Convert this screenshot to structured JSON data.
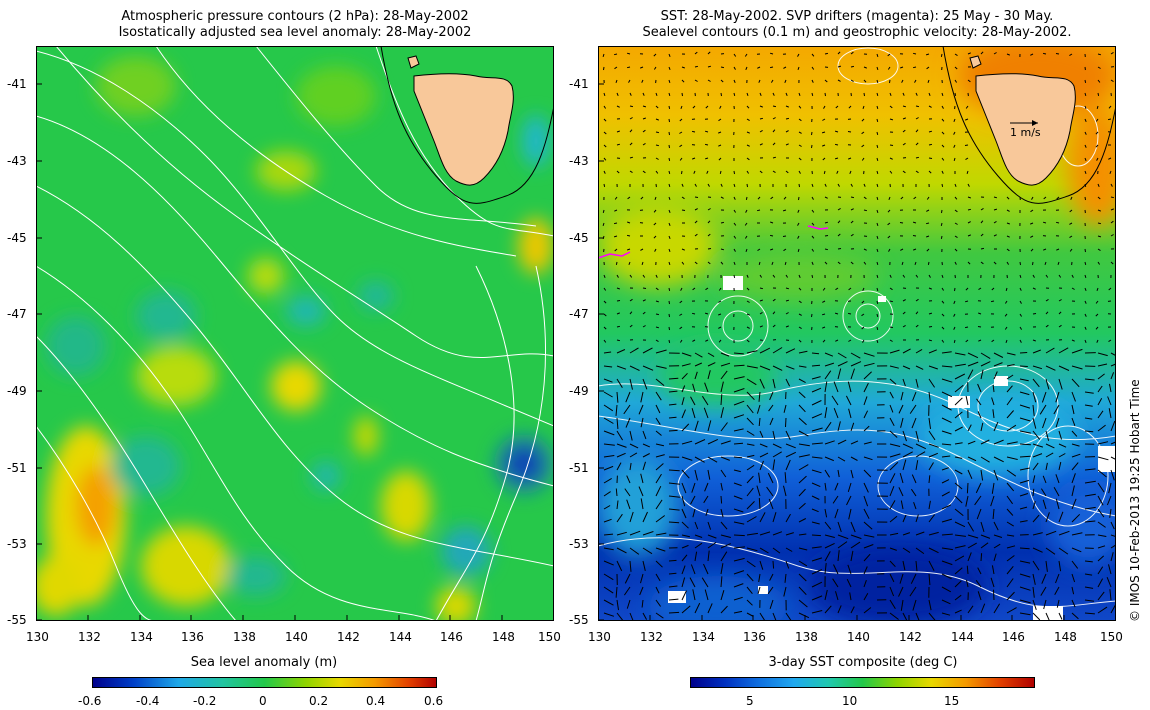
{
  "left_panel": {
    "title_line1": "Atmospheric pressure contours (2 hPa): 28-May-2002",
    "title_line2": "Isostatically adjusted sea level anomaly: 28-May-2002",
    "lat_ticks": [
      "-41",
      "-43",
      "-45",
      "-47",
      "-49",
      "-51",
      "-53",
      "-55"
    ],
    "lon_ticks": [
      "130",
      "132",
      "134",
      "136",
      "138",
      "140",
      "142",
      "144",
      "146",
      "148",
      "150"
    ],
    "colorbar": {
      "title": "Sea level anomaly (m)",
      "ticks": [
        "-0.6",
        "-0.4",
        "-0.2",
        "0",
        "0.2",
        "0.4",
        "0.6"
      ],
      "colors": [
        "#00008b",
        "#0050d0",
        "#1fa8e8",
        "#21c4a0",
        "#22c84a",
        "#8fd400",
        "#e8d800",
        "#f49a00",
        "#e24000",
        "#b00000"
      ]
    }
  },
  "right_panel": {
    "title_line1": "SST: 28-May-2002. SVP drifters (magenta): 25 May - 30 May.",
    "title_line2": "Sealevel contours (0.1 m) and geostrophic velocity: 28-May-2002.",
    "lat_ticks": [
      "-41",
      "-43",
      "-45",
      "-47",
      "-49",
      "-51",
      "-53",
      "-55"
    ],
    "lon_ticks": [
      "130",
      "132",
      "134",
      "136",
      "138",
      "140",
      "142",
      "144",
      "146",
      "148",
      "150"
    ],
    "scale_arrow_label": "1 m/s",
    "colorbar": {
      "title": "3-day SST composite (deg C)",
      "ticks": [
        "5",
        "10",
        "15"
      ],
      "colors": [
        "#00008b",
        "#0030c0",
        "#1070e0",
        "#20a8f0",
        "#20c8b0",
        "#22c84a",
        "#8cd400",
        "#e8d800",
        "#f49a00",
        "#e24000",
        "#b00000"
      ]
    }
  },
  "credit": "© IMOS 10-Feb-2013 19:25 Hobart Time",
  "colors": {
    "land": "#f8c89a",
    "coast": "#000000",
    "contour": "#ffffff",
    "vector": "#000000"
  }
}
